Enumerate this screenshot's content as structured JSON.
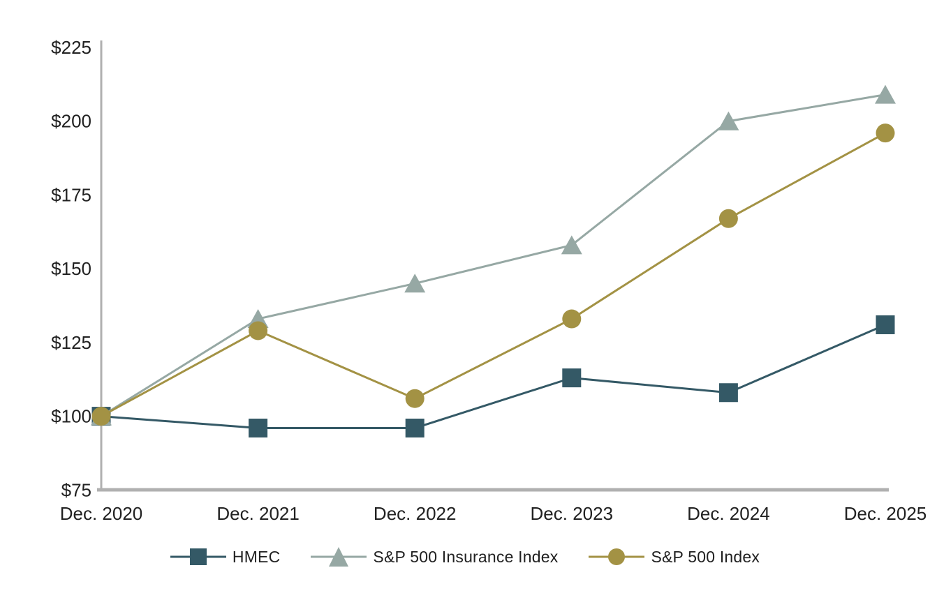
{
  "chart_data": {
    "type": "line",
    "title": "",
    "categories": [
      "Dec. 2020",
      "Dec. 2021",
      "Dec. 2022",
      "Dec. 2023",
      "Dec. 2024",
      "Dec. 2025"
    ],
    "y_tick_labels": [
      "$225",
      "$200",
      "$175",
      "$150",
      "$125",
      "$100",
      "$75"
    ],
    "y_tick_values": [
      225,
      200,
      175,
      150,
      125,
      100,
      75
    ],
    "ylim": [
      75,
      225
    ],
    "grid": false,
    "legend_position": "bottom",
    "axis_color": "#B0B0B0",
    "text_color": "#212121",
    "series": [
      {
        "name": "HMEC",
        "marker": "square",
        "color": "#345966",
        "values": [
          100,
          96,
          96,
          113,
          108,
          131
        ]
      },
      {
        "name": "S&P 500 Insurance Index",
        "marker": "triangle",
        "color": "#96A8A4",
        "values": [
          100,
          133,
          145,
          158,
          200,
          209
        ]
      },
      {
        "name": "S&P 500 Index",
        "marker": "circle",
        "color": "#A39244",
        "values": [
          100,
          129,
          106,
          133,
          167,
          196
        ]
      }
    ]
  }
}
